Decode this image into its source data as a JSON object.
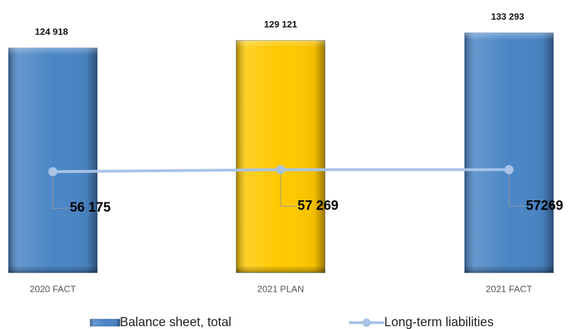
{
  "chart_data": {
    "type": "bar",
    "categories": [
      "2020 FACT",
      "2021 PLAN",
      "2021 FACT"
    ],
    "ylim": [
      0,
      150000
    ],
    "series": [
      {
        "name": "Balance sheet, total",
        "type": "bar",
        "color": "#4a86c6",
        "colors": [
          "#4a86c6",
          "#ffc800",
          "#4a86c6"
        ],
        "values": [
          124918,
          129121,
          133293
        ],
        "value_labels": [
          "124 918",
          "129 121",
          "133 293"
        ]
      },
      {
        "name": "Long-term liabilities",
        "type": "line",
        "color": "#a8c3e6",
        "values": [
          56175,
          57269,
          57269
        ],
        "value_labels": [
          "56 175",
          "57 269",
          "57269"
        ]
      }
    ],
    "legend": "bottom"
  }
}
